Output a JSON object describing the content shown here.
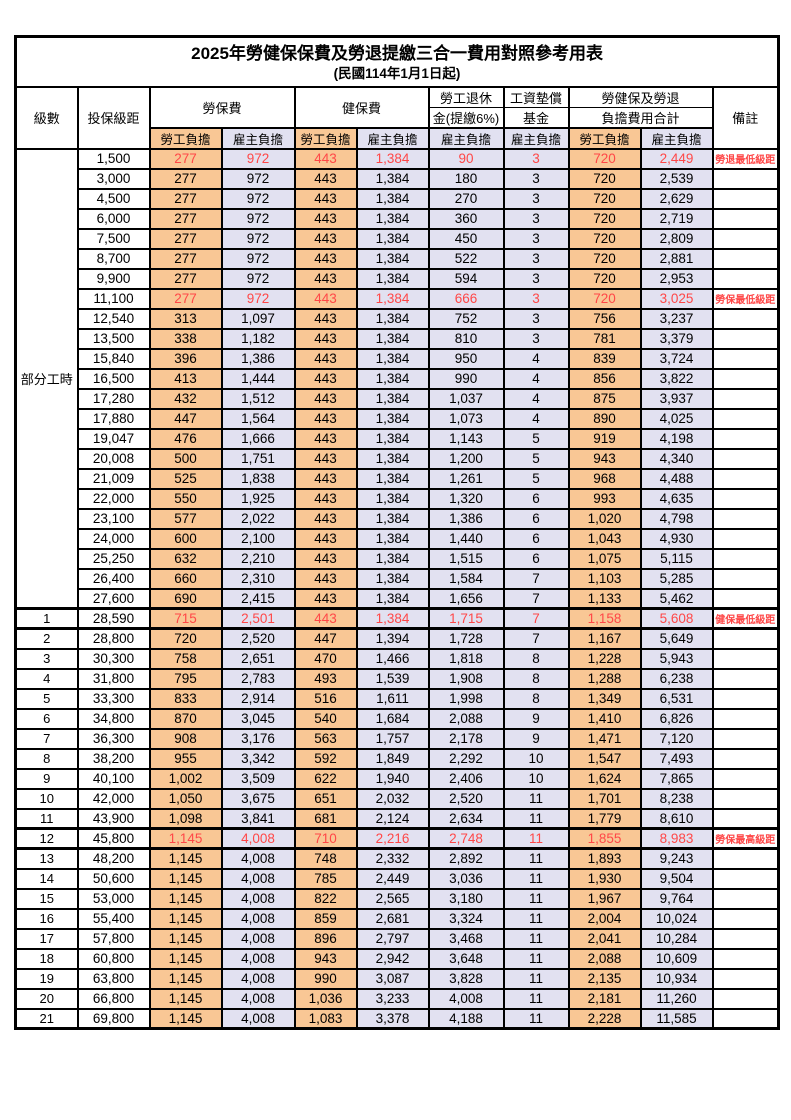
{
  "title": "2025年勞健保保費及勞退提繳三合一費用對照參考用表",
  "subtitle": "(民國114年1月1日起)",
  "colors": {
    "employee_bg": "#F9C795",
    "employer_bg": "#E2E1F1",
    "highlight_text": "#FF4747",
    "border": "#000000"
  },
  "header": {
    "level": "級數",
    "bracket": "投保級距",
    "labor": "勞保費",
    "health": "健保費",
    "pension_line1": "勞工退休",
    "pension_line2": "金(提繳6%)",
    "wage_fund_line1": "工資墊償",
    "wage_fund_line2": "基金",
    "total_line1": "勞健保及勞退",
    "total_line2": "負擔費用合計",
    "note": "備註",
    "employee": "勞工負擔",
    "employer": "雇主負擔"
  },
  "group_label": "部分工時",
  "rows": [
    {
      "level": "",
      "bracket": "1,500",
      "values": [
        "277",
        "972",
        "443",
        "1,384",
        "90",
        "3",
        "720",
        "2,449"
      ],
      "note": "勞退最低級距",
      "highlight": true
    },
    {
      "level": "",
      "bracket": "3,000",
      "values": [
        "277",
        "972",
        "443",
        "1,384",
        "180",
        "3",
        "720",
        "2,539"
      ],
      "note": ""
    },
    {
      "level": "",
      "bracket": "4,500",
      "values": [
        "277",
        "972",
        "443",
        "1,384",
        "270",
        "3",
        "720",
        "2,629"
      ],
      "note": ""
    },
    {
      "level": "",
      "bracket": "6,000",
      "values": [
        "277",
        "972",
        "443",
        "1,384",
        "360",
        "3",
        "720",
        "2,719"
      ],
      "note": ""
    },
    {
      "level": "",
      "bracket": "7,500",
      "values": [
        "277",
        "972",
        "443",
        "1,384",
        "450",
        "3",
        "720",
        "2,809"
      ],
      "note": ""
    },
    {
      "level": "",
      "bracket": "8,700",
      "values": [
        "277",
        "972",
        "443",
        "1,384",
        "522",
        "3",
        "720",
        "2,881"
      ],
      "note": ""
    },
    {
      "level": "",
      "bracket": "9,900",
      "values": [
        "277",
        "972",
        "443",
        "1,384",
        "594",
        "3",
        "720",
        "2,953"
      ],
      "note": ""
    },
    {
      "level": "",
      "bracket": "11,100",
      "values": [
        "277",
        "972",
        "443",
        "1,384",
        "666",
        "3",
        "720",
        "3,025"
      ],
      "note": "勞保最低級距",
      "highlight": true
    },
    {
      "level": "",
      "bracket": "12,540",
      "values": [
        "313",
        "1,097",
        "443",
        "1,384",
        "752",
        "3",
        "756",
        "3,237"
      ],
      "note": ""
    },
    {
      "level": "",
      "bracket": "13,500",
      "values": [
        "338",
        "1,182",
        "443",
        "1,384",
        "810",
        "3",
        "781",
        "3,379"
      ],
      "note": ""
    },
    {
      "level": "",
      "bracket": "15,840",
      "values": [
        "396",
        "1,386",
        "443",
        "1,384",
        "950",
        "4",
        "839",
        "3,724"
      ],
      "note": ""
    },
    {
      "level": "",
      "bracket": "16,500",
      "values": [
        "413",
        "1,444",
        "443",
        "1,384",
        "990",
        "4",
        "856",
        "3,822"
      ],
      "note": ""
    },
    {
      "level": "",
      "bracket": "17,280",
      "values": [
        "432",
        "1,512",
        "443",
        "1,384",
        "1,037",
        "4",
        "875",
        "3,937"
      ],
      "note": ""
    },
    {
      "level": "",
      "bracket": "17,880",
      "values": [
        "447",
        "1,564",
        "443",
        "1,384",
        "1,073",
        "4",
        "890",
        "4,025"
      ],
      "note": ""
    },
    {
      "level": "",
      "bracket": "19,047",
      "values": [
        "476",
        "1,666",
        "443",
        "1,384",
        "1,143",
        "5",
        "919",
        "4,198"
      ],
      "note": ""
    },
    {
      "level": "",
      "bracket": "20,008",
      "values": [
        "500",
        "1,751",
        "443",
        "1,384",
        "1,200",
        "5",
        "943",
        "4,340"
      ],
      "note": ""
    },
    {
      "level": "",
      "bracket": "21,009",
      "values": [
        "525",
        "1,838",
        "443",
        "1,384",
        "1,261",
        "5",
        "968",
        "4,488"
      ],
      "note": ""
    },
    {
      "level": "",
      "bracket": "22,000",
      "values": [
        "550",
        "1,925",
        "443",
        "1,384",
        "1,320",
        "6",
        "993",
        "4,635"
      ],
      "note": ""
    },
    {
      "level": "",
      "bracket": "23,100",
      "values": [
        "577",
        "2,022",
        "443",
        "1,384",
        "1,386",
        "6",
        "1,020",
        "4,798"
      ],
      "note": ""
    },
    {
      "level": "",
      "bracket": "24,000",
      "values": [
        "600",
        "2,100",
        "443",
        "1,384",
        "1,440",
        "6",
        "1,043",
        "4,930"
      ],
      "note": ""
    },
    {
      "level": "",
      "bracket": "25,250",
      "values": [
        "632",
        "2,210",
        "443",
        "1,384",
        "1,515",
        "6",
        "1,075",
        "5,115"
      ],
      "note": ""
    },
    {
      "level": "",
      "bracket": "26,400",
      "values": [
        "660",
        "2,310",
        "443",
        "1,384",
        "1,584",
        "7",
        "1,103",
        "5,285"
      ],
      "note": ""
    },
    {
      "level": "",
      "bracket": "27,600",
      "values": [
        "690",
        "2,415",
        "443",
        "1,384",
        "1,656",
        "7",
        "1,133",
        "5,462"
      ],
      "note": ""
    },
    {
      "level": "1",
      "bracket": "28,590",
      "values": [
        "715",
        "2,501",
        "443",
        "1,384",
        "1,715",
        "7",
        "1,158",
        "5,608"
      ],
      "note": "健保最低級距",
      "highlight": true
    },
    {
      "level": "2",
      "bracket": "28,800",
      "values": [
        "720",
        "2,520",
        "447",
        "1,394",
        "1,728",
        "7",
        "1,167",
        "5,649"
      ],
      "note": ""
    },
    {
      "level": "3",
      "bracket": "30,300",
      "values": [
        "758",
        "2,651",
        "470",
        "1,466",
        "1,818",
        "8",
        "1,228",
        "5,943"
      ],
      "note": ""
    },
    {
      "level": "4",
      "bracket": "31,800",
      "values": [
        "795",
        "2,783",
        "493",
        "1,539",
        "1,908",
        "8",
        "1,288",
        "6,238"
      ],
      "note": ""
    },
    {
      "level": "5",
      "bracket": "33,300",
      "values": [
        "833",
        "2,914",
        "516",
        "1,611",
        "1,998",
        "8",
        "1,349",
        "6,531"
      ],
      "note": ""
    },
    {
      "level": "6",
      "bracket": "34,800",
      "values": [
        "870",
        "3,045",
        "540",
        "1,684",
        "2,088",
        "9",
        "1,410",
        "6,826"
      ],
      "note": ""
    },
    {
      "level": "7",
      "bracket": "36,300",
      "values": [
        "908",
        "3,176",
        "563",
        "1,757",
        "2,178",
        "9",
        "1,471",
        "7,120"
      ],
      "note": ""
    },
    {
      "level": "8",
      "bracket": "38,200",
      "values": [
        "955",
        "3,342",
        "592",
        "1,849",
        "2,292",
        "10",
        "1,547",
        "7,493"
      ],
      "note": ""
    },
    {
      "level": "9",
      "bracket": "40,100",
      "values": [
        "1,002",
        "3,509",
        "622",
        "1,940",
        "2,406",
        "10",
        "1,624",
        "7,865"
      ],
      "note": ""
    },
    {
      "level": "10",
      "bracket": "42,000",
      "values": [
        "1,050",
        "3,675",
        "651",
        "2,032",
        "2,520",
        "11",
        "1,701",
        "8,238"
      ],
      "note": ""
    },
    {
      "level": "11",
      "bracket": "43,900",
      "values": [
        "1,098",
        "3,841",
        "681",
        "2,124",
        "2,634",
        "11",
        "1,779",
        "8,610"
      ],
      "note": ""
    },
    {
      "level": "12",
      "bracket": "45,800",
      "values": [
        "1,145",
        "4,008",
        "710",
        "2,216",
        "2,748",
        "11",
        "1,855",
        "8,983"
      ],
      "note": "勞保最高級距",
      "highlight": true
    },
    {
      "level": "13",
      "bracket": "48,200",
      "values": [
        "1,145",
        "4,008",
        "748",
        "2,332",
        "2,892",
        "11",
        "1,893",
        "9,243"
      ],
      "note": ""
    },
    {
      "level": "14",
      "bracket": "50,600",
      "values": [
        "1,145",
        "4,008",
        "785",
        "2,449",
        "3,036",
        "11",
        "1,930",
        "9,504"
      ],
      "note": ""
    },
    {
      "level": "15",
      "bracket": "53,000",
      "values": [
        "1,145",
        "4,008",
        "822",
        "2,565",
        "3,180",
        "11",
        "1,967",
        "9,764"
      ],
      "note": ""
    },
    {
      "level": "16",
      "bracket": "55,400",
      "values": [
        "1,145",
        "4,008",
        "859",
        "2,681",
        "3,324",
        "11",
        "2,004",
        "10,024"
      ],
      "note": ""
    },
    {
      "level": "17",
      "bracket": "57,800",
      "values": [
        "1,145",
        "4,008",
        "896",
        "2,797",
        "3,468",
        "11",
        "2,041",
        "10,284"
      ],
      "note": ""
    },
    {
      "level": "18",
      "bracket": "60,800",
      "values": [
        "1,145",
        "4,008",
        "943",
        "2,942",
        "3,648",
        "11",
        "2,088",
        "10,609"
      ],
      "note": ""
    },
    {
      "level": "19",
      "bracket": "63,800",
      "values": [
        "1,145",
        "4,008",
        "990",
        "3,087",
        "3,828",
        "11",
        "2,135",
        "10,934"
      ],
      "note": ""
    },
    {
      "level": "20",
      "bracket": "66,800",
      "values": [
        "1,145",
        "4,008",
        "1,036",
        "3,233",
        "4,008",
        "11",
        "2,181",
        "11,260"
      ],
      "note": ""
    },
    {
      "level": "21",
      "bracket": "69,800",
      "values": [
        "1,145",
        "4,008",
        "1,083",
        "3,378",
        "4,188",
        "11",
        "2,228",
        "11,585"
      ],
      "note": ""
    }
  ]
}
